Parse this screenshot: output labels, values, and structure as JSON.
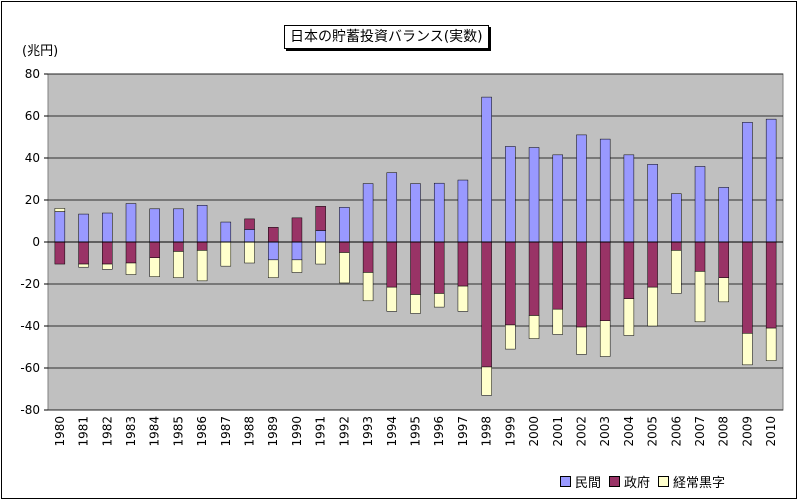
{
  "chart_data": {
    "type": "bar",
    "stacked": true,
    "title": "日本の貯蓄投資バランス(実数)",
    "unit_label": "(兆円)",
    "ylim": [
      -80,
      80
    ],
    "yticks": [
      80,
      60,
      40,
      20,
      0,
      -20,
      -40,
      -60,
      -80
    ],
    "grid": true,
    "legend_position": "bottom-right",
    "categories": [
      "1980",
      "1981",
      "1982",
      "1983",
      "1984",
      "1985",
      "1986",
      "1987",
      "1988",
      "1989",
      "1990",
      "1991",
      "1992",
      "1993",
      "1994",
      "1995",
      "1996",
      "1997",
      "1998",
      "1999",
      "2000",
      "2001",
      "2002",
      "2003",
      "2004",
      "2005",
      "2006",
      "2007",
      "2008",
      "2009",
      "2010"
    ],
    "series": [
      {
        "name": "民間",
        "color": "#9999ff",
        "values": [
          14.5,
          13.3,
          13.8,
          18.3,
          15.8,
          15.8,
          17.5,
          9.5,
          6,
          -8.5,
          -8.5,
          5.5,
          16.5,
          27.8,
          33,
          27.8,
          28,
          29.5,
          69,
          45.5,
          45,
          41.5,
          51,
          49,
          41.5,
          37,
          23,
          36,
          26,
          57,
          58.5
        ]
      },
      {
        "name": "政府",
        "color": "#993366",
        "values": [
          -10.5,
          -10.5,
          -10.5,
          -10,
          -7.5,
          -4.5,
          -4,
          0,
          5,
          7,
          11.5,
          11.5,
          -5,
          -14.5,
          -21.5,
          -25,
          -24.5,
          -21,
          -59.5,
          -39.5,
          -35,
          -32,
          -40.5,
          -37.5,
          -27,
          -21.5,
          -4,
          -14,
          -17,
          -43.5,
          -41
        ]
      },
      {
        "name": "経常黒字",
        "color": "#ffffcc",
        "values": [
          1.5,
          -1.5,
          -2.5,
          -5.5,
          -9,
          -12.5,
          -14.5,
          -11.5,
          -10,
          -8.5,
          -6,
          -10.5,
          -14.5,
          -13.5,
          -11.5,
          -9,
          -6.5,
          -12,
          -13.5,
          -11.5,
          -11,
          -12,
          -13,
          -17,
          -17.5,
          -18.5,
          -20.5,
          -24,
          -11.5,
          -15,
          -15.5
        ]
      }
    ]
  }
}
